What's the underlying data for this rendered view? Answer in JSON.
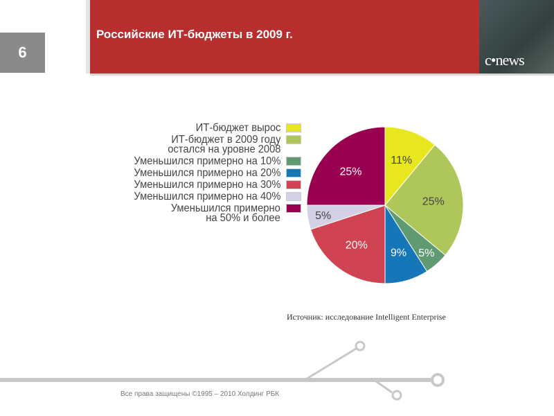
{
  "slide": {
    "number": "6",
    "title": "Российские ИТ-бюджеты в 2009 г.",
    "logo": "c•news",
    "source": "Источник: исследование Intelligent Enterprise",
    "footer": "Все права защищены ©1995 – 2010 Холдинг РБК"
  },
  "chart_data": {
    "type": "pie",
    "start": "top, clockwise",
    "slices": [
      {
        "label": "ИТ-бюджет вырос",
        "value": 11,
        "text": "11%",
        "color": "#e8e61e",
        "label_color": "#444"
      },
      {
        "label": "ИТ-бюджет в 2009 году остался на уровне 2008",
        "value": 25,
        "text": "25%",
        "color": "#aec65a",
        "label_color": "#444"
      },
      {
        "label": "Уменьшился примерно на 10%",
        "value": 5,
        "text": "5%",
        "color": "#5f9a72",
        "label_color": "#fff"
      },
      {
        "label": "Уменьшился примерно на 20%",
        "value": 9,
        "text": "9%",
        "color": "#1576b8",
        "label_color": "#fff"
      },
      {
        "label": "Уменьшился примерно на 30%",
        "value": 20,
        "text": "20%",
        "color": "#d04352",
        "label_color": "#fff"
      },
      {
        "label": "Уменьшился примерно на 40%",
        "value": 5,
        "text": "5%",
        "color": "#d4d0e6",
        "label_color": "#444"
      },
      {
        "label": "Уменьшился примерно на 50% и более",
        "value": 25,
        "text": "25%",
        "color": "#9a0050",
        "label_color": "#fff"
      }
    ]
  }
}
